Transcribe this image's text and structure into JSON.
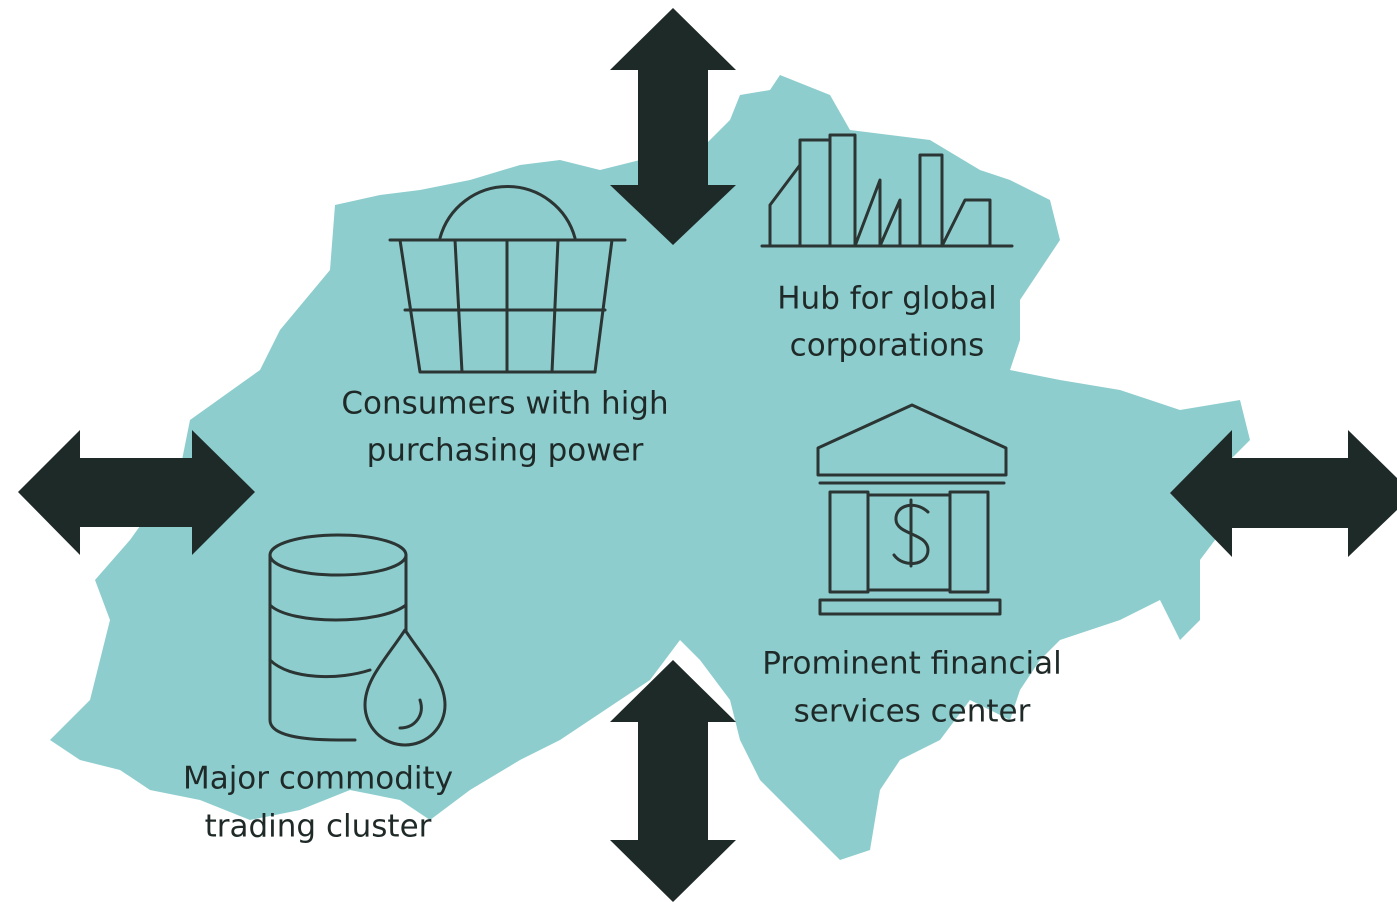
{
  "nodes": [
    {
      "lines": [
        "Consumers with high",
        "purchasing power"
      ]
    },
    {
      "lines": [
        "Hub for global",
        "corporations"
      ]
    },
    {
      "lines": [
        "Prominent financial",
        "services center"
      ]
    },
    {
      "lines": [
        "Major commodity",
        "trading cluster"
      ]
    }
  ]
}
